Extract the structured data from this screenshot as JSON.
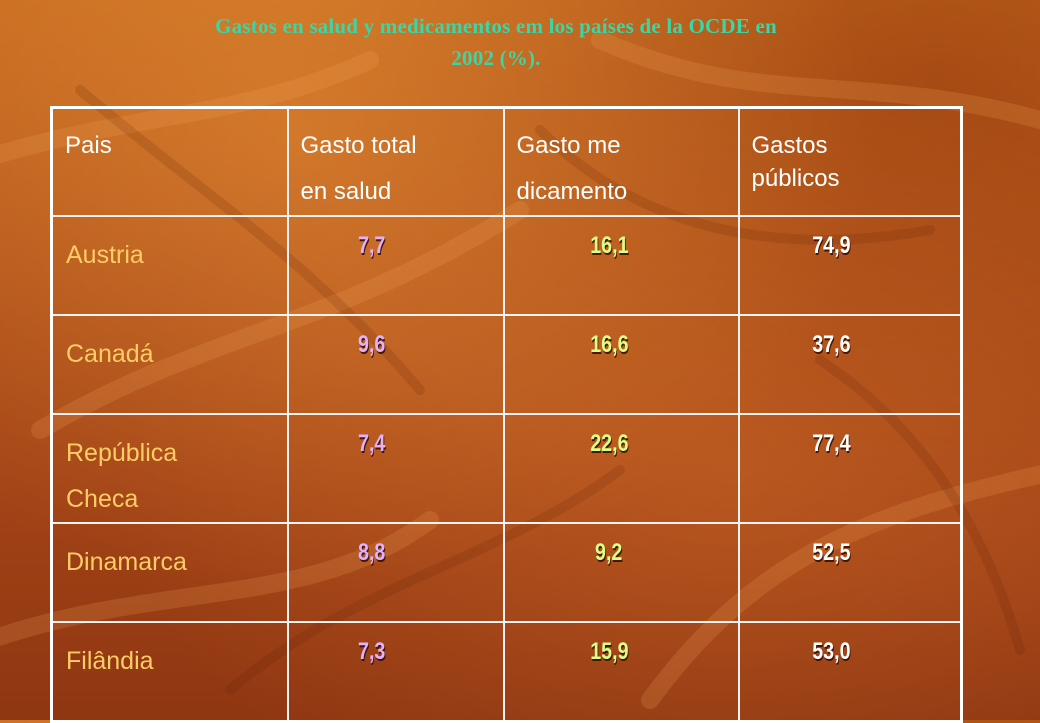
{
  "title": {
    "line1": "Gastos en salud y medicamentos em los países de la OCDE en",
    "line2": "2002 (%)."
  },
  "table": {
    "headers": {
      "country": "Pais",
      "total_health": [
        "Gasto total",
        "en salud"
      ],
      "medicine": [
        "Gasto me",
        "dicamento"
      ],
      "public": [
        "Gastos",
        "públicos"
      ]
    },
    "rows": [
      {
        "country": [
          "Austria"
        ],
        "total_health": "7,7",
        "medicine": "16,1",
        "public": "74,9"
      },
      {
        "country": [
          "Canadá"
        ],
        "total_health": "9,6",
        "medicine": "16,6",
        "public": "37,6"
      },
      {
        "country": [
          "República",
          "Checa"
        ],
        "total_health": "7,4",
        "medicine": "22,6",
        "public": "77,4"
      },
      {
        "country": [
          "Dinamarca"
        ],
        "total_health": "8,8",
        "medicine": "9,2",
        "public": "52,5"
      },
      {
        "country": [
          "Filândia"
        ],
        "total_health": "7,3",
        "medicine": "15,9",
        "public": "53,0"
      }
    ]
  },
  "colors": {
    "title": "#39d6a8",
    "header_text": "#ffffff",
    "country_text": "#ffcc66",
    "total_health_values": "#dfb2ff",
    "medicine_values": "#d9ff86",
    "public_values": "#ffffff",
    "background": "#b2541b"
  }
}
